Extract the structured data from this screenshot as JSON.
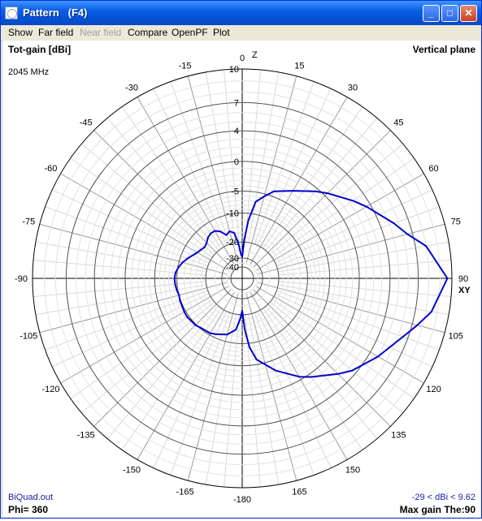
{
  "window": {
    "title": "Pattern   (F4)",
    "buttons": {
      "minimize": "_",
      "maximize": "□",
      "close": "✕"
    }
  },
  "menu": [
    "Show",
    "Far field",
    "Near field",
    "Compare",
    "OpenPF",
    "Plot"
  ],
  "plot": {
    "gain_label": "Tot-gain [dBi]",
    "plane_label": "Vertical plane",
    "frequency": "2045 MHz",
    "filename": "BiQuad.out",
    "phi": "Phi= 360",
    "range": "-29 < dBi < 9.62",
    "max_gain": "Max gain The:90",
    "axis_z": "Z",
    "axis_xy": "XY",
    "line_color": "#0000cc"
  },
  "chart_data": {
    "type": "polar",
    "radial_ticks_dbi": [
      "10",
      "7",
      "4",
      "0",
      "-5",
      "-10",
      "-20",
      "-30",
      "-40"
    ],
    "angle_labels": [
      "0",
      "15",
      "30",
      "45",
      "60",
      "75",
      "90",
      "105",
      "120",
      "135",
      "150",
      "165",
      "-180",
      "-165",
      "-150",
      "-135",
      "-120",
      "-105",
      "-90",
      "-75",
      "-60",
      "-45",
      "-30",
      "-15"
    ],
    "grid": true,
    "series": [
      {
        "theta_deg": [
          0,
          3,
          6,
          10,
          15,
          20,
          30,
          40,
          45,
          55,
          60,
          70,
          75,
          80,
          90,
          100,
          105,
          110,
          120,
          130,
          135,
          145,
          150,
          160,
          170,
          174,
          177,
          180,
          -177,
          -173,
          -165,
          -155,
          -150,
          -140,
          -135,
          -125,
          -120,
          -110,
          -105,
          -100,
          -95,
          -90,
          -85,
          -80,
          -75,
          -70,
          -60,
          -50,
          -45,
          -40,
          -35,
          -30,
          -25,
          -20,
          -15,
          -10,
          -6,
          -3
        ],
        "gain_dbi": [
          -29,
          -19,
          -12,
          -7,
          -5.5,
          -4,
          -2.5,
          -0.5,
          0.5,
          2.5,
          3.5,
          5.5,
          6.5,
          8,
          9.62,
          8.5,
          7.5,
          6.5,
          5,
          3.5,
          2.5,
          0.5,
          -0.5,
          -3,
          -6,
          -9,
          -14,
          -22,
          -18,
          -14,
          -12,
          -11,
          -10.5,
          -10.2,
          -9.8,
          -9.5,
          -9.6,
          -9.8,
          -10,
          -9.7,
          -9.5,
          -9.4,
          -9.6,
          -10.2,
          -11,
          -12,
          -14,
          -15,
          -14.5,
          -13.5,
          -13,
          -13,
          -14,
          -16,
          -15,
          -16,
          -21,
          -27
        ]
      }
    ]
  }
}
